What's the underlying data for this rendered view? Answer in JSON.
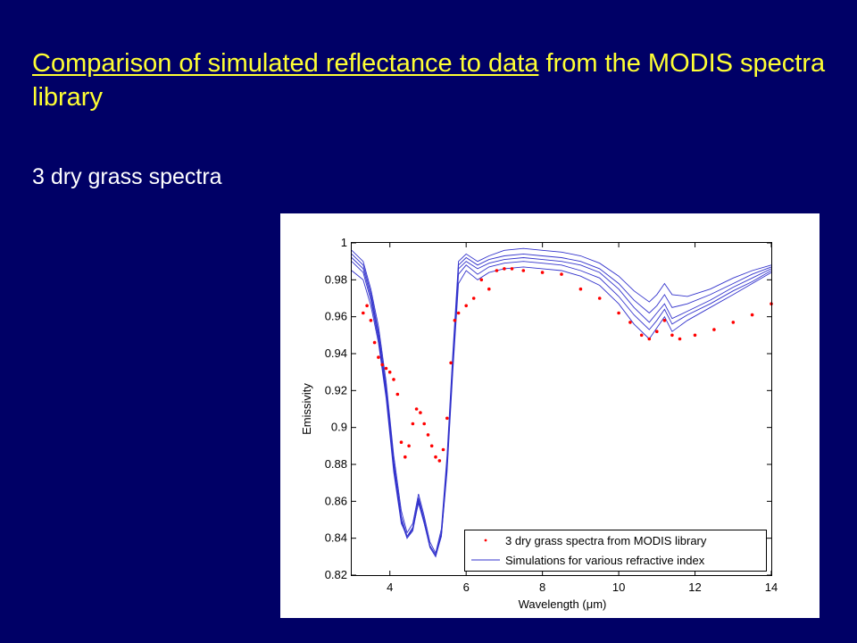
{
  "slide": {
    "title_underlined": "Comparison of simulated reflectance to data",
    "title_rest": " from the MODIS spectra library",
    "subtitle": "3 dry grass spectra"
  },
  "colors": {
    "background": "#000066",
    "title": "#ffff33",
    "subtitle": "#ffffff",
    "data": "#ff0000",
    "simulation": "#3333cc"
  },
  "chart_data": {
    "type": "scatter",
    "xlabel": "Wavelength (μm)",
    "ylabel": "Emissivity",
    "xlim": [
      3,
      14
    ],
    "ylim": [
      0.82,
      1.0
    ],
    "xticks": [
      4,
      6,
      8,
      10,
      12,
      14
    ],
    "yticks": [
      0.82,
      0.84,
      0.86,
      0.88,
      0.9,
      0.92,
      0.94,
      0.96,
      0.98,
      1
    ],
    "ytick_labels": [
      "0.82",
      "0.84",
      "0.86",
      "0.88",
      "0.9",
      "0.92",
      "0.94",
      "0.96",
      "0.98",
      "1"
    ],
    "grid": false,
    "legend_position": "bottom-right",
    "series": [
      {
        "name": "3 dry grass spectra from MODIS library",
        "style": "points",
        "color": "#ff0000",
        "x": [
          3.3,
          3.4,
          3.5,
          3.6,
          3.7,
          3.8,
          3.9,
          4.0,
          4.1,
          4.2,
          4.3,
          4.4,
          4.5,
          4.6,
          4.7,
          4.8,
          4.9,
          5.0,
          5.1,
          5.2,
          5.3,
          5.4,
          5.5,
          5.6,
          5.7,
          5.8,
          6.0,
          6.2,
          6.4,
          6.6,
          6.8,
          7.0,
          7.2,
          7.5,
          8.0,
          8.5,
          9.0,
          9.5,
          10.0,
          10.3,
          10.6,
          10.8,
          11.0,
          11.2,
          11.4,
          11.6,
          12.0,
          12.5,
          13.0,
          13.5,
          14.0
        ],
        "y": [
          0.962,
          0.966,
          0.958,
          0.946,
          0.938,
          0.934,
          0.932,
          0.93,
          0.926,
          0.918,
          0.892,
          0.884,
          0.89,
          0.902,
          0.91,
          0.908,
          0.902,
          0.896,
          0.89,
          0.884,
          0.882,
          0.888,
          0.905,
          0.935,
          0.958,
          0.962,
          0.966,
          0.97,
          0.98,
          0.975,
          0.985,
          0.986,
          0.986,
          0.985,
          0.984,
          0.983,
          0.975,
          0.97,
          0.962,
          0.957,
          0.95,
          0.948,
          0.952,
          0.958,
          0.95,
          0.948,
          0.95,
          0.953,
          0.957,
          0.961,
          0.967
        ]
      },
      {
        "name": "Simulations for various refractive index",
        "style": "lines",
        "color": "#3333cc",
        "x": [
          3.0,
          3.3,
          3.5,
          3.7,
          3.9,
          4.1,
          4.3,
          4.45,
          4.6,
          4.75,
          4.9,
          5.05,
          5.2,
          5.35,
          5.5,
          5.65,
          5.8,
          6.0,
          6.3,
          6.6,
          7.0,
          7.5,
          8.0,
          8.5,
          9.0,
          9.5,
          10.0,
          10.4,
          10.8,
          11.0,
          11.2,
          11.4,
          11.8,
          12.4,
          13.0,
          13.5,
          14.0
        ],
        "lines": [
          [
            0.996,
            0.99,
            0.975,
            0.955,
            0.925,
            0.885,
            0.855,
            0.843,
            0.848,
            0.864,
            0.852,
            0.838,
            0.832,
            0.845,
            0.885,
            0.94,
            0.99,
            0.994,
            0.99,
            0.993,
            0.996,
            0.997,
            0.996,
            0.995,
            0.993,
            0.989,
            0.982,
            0.974,
            0.968,
            0.972,
            0.978,
            0.972,
            0.971,
            0.975,
            0.981,
            0.985,
            0.988
          ],
          [
            0.994,
            0.988,
            0.973,
            0.952,
            0.922,
            0.882,
            0.852,
            0.841,
            0.846,
            0.862,
            0.85,
            0.836,
            0.831,
            0.843,
            0.882,
            0.937,
            0.988,
            0.992,
            0.988,
            0.991,
            0.993,
            0.994,
            0.993,
            0.992,
            0.99,
            0.986,
            0.978,
            0.969,
            0.962,
            0.966,
            0.972,
            0.965,
            0.967,
            0.972,
            0.978,
            0.983,
            0.987
          ],
          [
            0.992,
            0.986,
            0.971,
            0.95,
            0.92,
            0.88,
            0.85,
            0.84,
            0.845,
            0.861,
            0.849,
            0.835,
            0.83,
            0.842,
            0.88,
            0.935,
            0.986,
            0.99,
            0.986,
            0.989,
            0.991,
            0.992,
            0.991,
            0.99,
            0.988,
            0.984,
            0.975,
            0.965,
            0.957,
            0.962,
            0.967,
            0.959,
            0.963,
            0.969,
            0.976,
            0.981,
            0.986
          ],
          [
            0.99,
            0.984,
            0.969,
            0.948,
            0.918,
            0.878,
            0.849,
            0.84,
            0.844,
            0.86,
            0.848,
            0.835,
            0.83,
            0.841,
            0.878,
            0.933,
            0.983,
            0.988,
            0.983,
            0.987,
            0.989,
            0.99,
            0.989,
            0.988,
            0.985,
            0.981,
            0.971,
            0.961,
            0.953,
            0.958,
            0.964,
            0.956,
            0.961,
            0.967,
            0.974,
            0.979,
            0.985
          ],
          [
            0.985,
            0.98,
            0.966,
            0.946,
            0.916,
            0.876,
            0.848,
            0.841,
            0.845,
            0.859,
            0.848,
            0.836,
            0.831,
            0.841,
            0.876,
            0.93,
            0.978,
            0.985,
            0.98,
            0.984,
            0.986,
            0.987,
            0.986,
            0.985,
            0.982,
            0.977,
            0.967,
            0.956,
            0.948,
            0.954,
            0.96,
            0.952,
            0.958,
            0.965,
            0.972,
            0.978,
            0.984
          ]
        ]
      }
    ]
  }
}
